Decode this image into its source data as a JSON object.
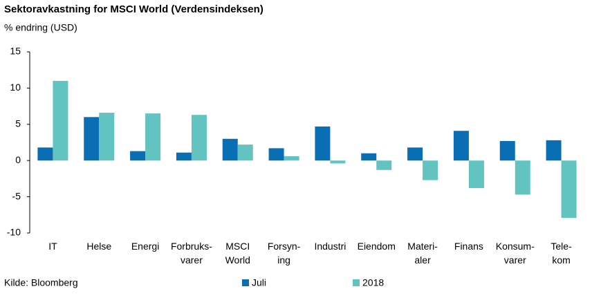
{
  "chart_data": {
    "type": "bar",
    "title": "Sektoravkastning for MSCI World (Verdensindeksen)",
    "subtitle": "% endring (USD)",
    "source": "Kilde: Bloomberg",
    "categories": [
      "IT",
      "Helse",
      "Energi",
      "Forbruks-\nvarer",
      "MSCI\nWorld",
      "Forsyn-\ning",
      "Industri",
      "Eiendom",
      "Materi-\naler",
      "Finans",
      "Konsum-\nvarer",
      "Tele-\nkom"
    ],
    "series": [
      {
        "name": "Juli",
        "color": "#0a6eb4",
        "values": [
          1.8,
          6.0,
          1.3,
          1.1,
          3.0,
          1.7,
          4.7,
          1.0,
          1.8,
          4.1,
          2.7,
          2.8
        ]
      },
      {
        "name": "2018",
        "color": "#62c3c1",
        "values": [
          11.0,
          6.6,
          6.5,
          6.3,
          2.2,
          0.6,
          -0.4,
          -1.3,
          -2.7,
          -3.8,
          -4.7,
          -7.9
        ]
      }
    ],
    "ylim": [
      -10,
      15
    ],
    "yticks": [
      -10,
      -5,
      0,
      5,
      10,
      15
    ],
    "grid": false,
    "legend": "bottom"
  }
}
